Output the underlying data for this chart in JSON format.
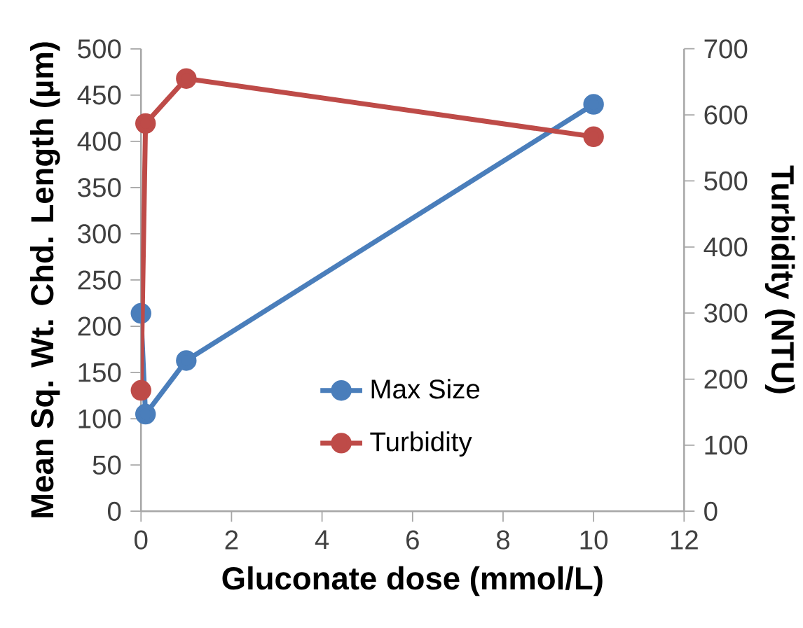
{
  "chart_data": {
    "type": "line",
    "xlabel": "Gluconate dose (mmol/L)",
    "ylabel": "Mean Sq. Wt. Chd. Length (µm)",
    "y2label": "Turbidity (NTU)",
    "xlim": [
      0,
      12
    ],
    "xticks": [
      0,
      2,
      4,
      6,
      8,
      10,
      12
    ],
    "ylim": [
      0,
      500
    ],
    "yticks": [
      0,
      50,
      100,
      150,
      200,
      250,
      300,
      350,
      400,
      450,
      500
    ],
    "y2lim": [
      0,
      700
    ],
    "y2ticks": [
      0,
      100,
      200,
      300,
      400,
      500,
      600,
      700
    ],
    "marker": "circle",
    "line_style": "solid",
    "grid": false,
    "legend": "bottom",
    "series": [
      {
        "name": "Max Size",
        "color": "#4a7ebb",
        "x": [
          0,
          0.1,
          1,
          10
        ],
        "values": [
          214,
          105,
          163,
          440
        ]
      },
      {
        "name": "Turbidity",
        "color": "#be4b48",
        "x": [
          0,
          0.1,
          1,
          10
        ],
        "values": [
          183,
          587,
          655,
          567
        ],
        "axis": "y2"
      }
    ]
  }
}
